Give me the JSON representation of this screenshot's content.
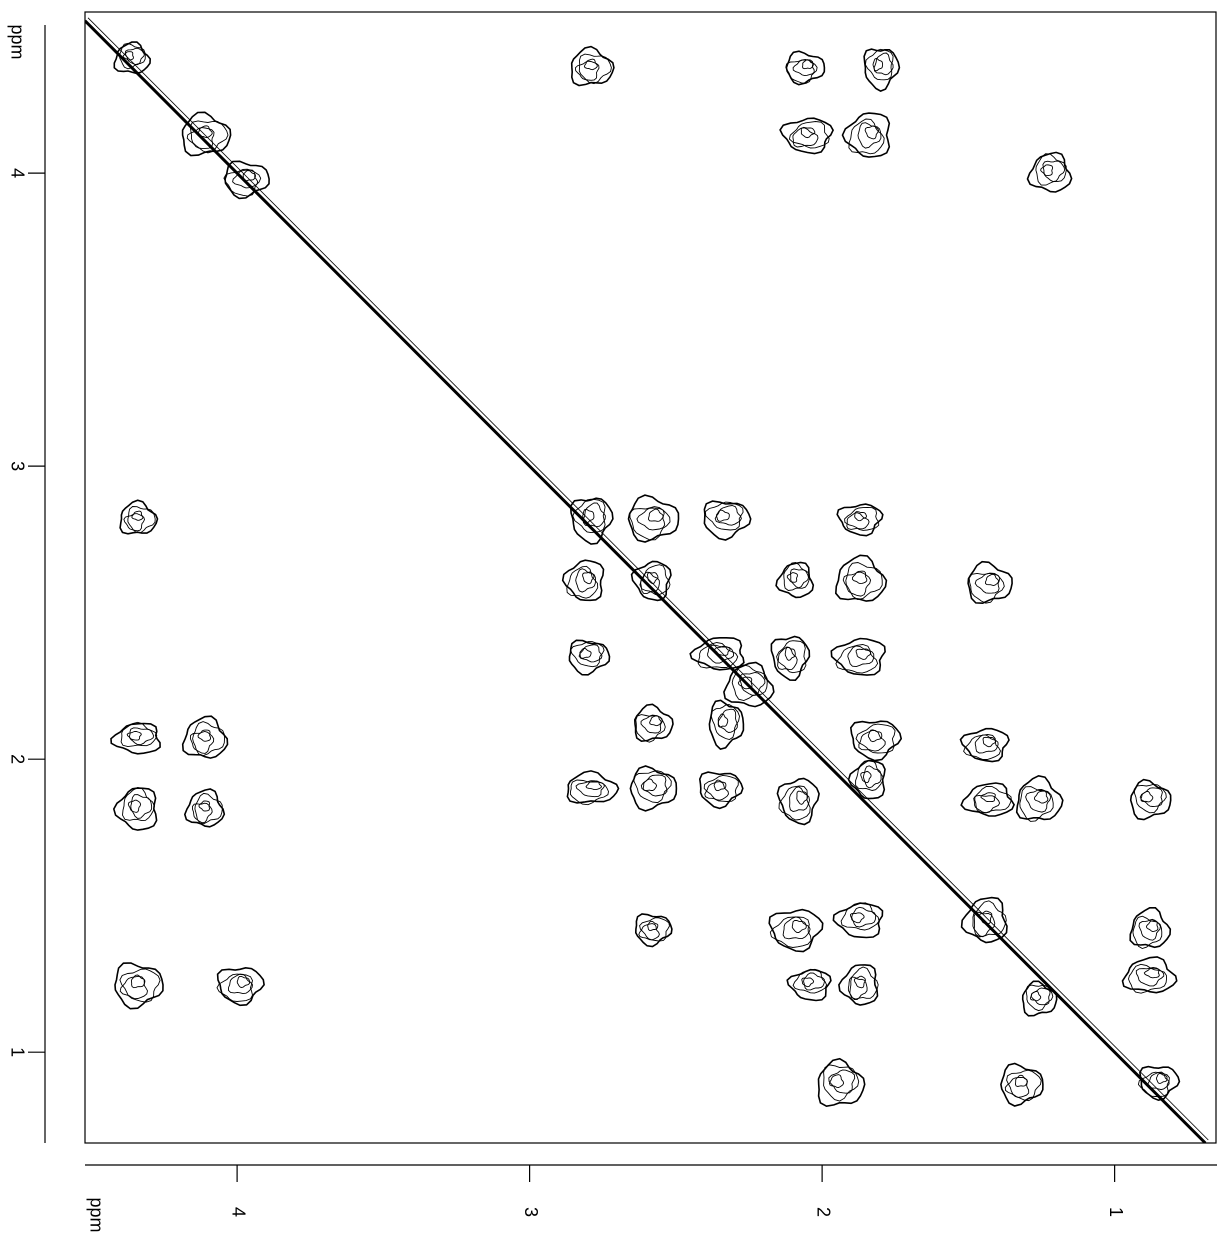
{
  "chart_data": {
    "type": "contour",
    "x_label": "ppm",
    "y_label": "ppm",
    "xlim": [
      4.52,
      0.65
    ],
    "ylim": [
      4.55,
      0.69
    ],
    "xticks": [
      4,
      3,
      2,
      1
    ],
    "yticks": [
      4,
      3,
      2,
      1
    ],
    "diagonal": true,
    "color": "#000000",
    "peaks": {
      "x": [
        4.36,
        4.11,
        3.97,
        2.79,
        2.58,
        2.35,
        2.25,
        2.79,
        2.06,
        1.8,
        2.05,
        1.84,
        1.22,
        4.34,
        2.58,
        2.33,
        1.87,
        2.81,
        2.09,
        1.87,
        1.43,
        2.8,
        2.11,
        1.87,
        4.34,
        4.11,
        2.58,
        2.33,
        1.82,
        1.44,
        4.34,
        4.11,
        2.79,
        2.58,
        2.35,
        2.08,
        1.84,
        1.43,
        1.26,
        0.88,
        2.58,
        2.09,
        1.87,
        1.44,
        0.88,
        1.26,
        4.34,
        3.99,
        2.04,
        1.87,
        0.88,
        1.94,
        1.32,
        0.85
      ],
      "y": [
        4.39,
        4.13,
        3.98,
        2.82,
        2.61,
        2.36,
        2.25,
        4.36,
        4.36,
        4.36,
        4.13,
        4.13,
        4.0,
        2.82,
        2.82,
        2.82,
        2.82,
        2.61,
        2.61,
        2.61,
        2.6,
        2.35,
        2.35,
        2.35,
        2.07,
        2.07,
        2.12,
        2.12,
        2.07,
        2.05,
        1.83,
        1.83,
        1.9,
        1.9,
        1.9,
        1.86,
        1.93,
        1.86,
        1.86,
        1.86,
        1.42,
        1.42,
        1.45,
        1.45,
        1.42,
        1.18,
        1.23,
        1.23,
        1.23,
        1.23,
        1.26,
        0.89,
        0.89,
        0.9
      ]
    }
  }
}
